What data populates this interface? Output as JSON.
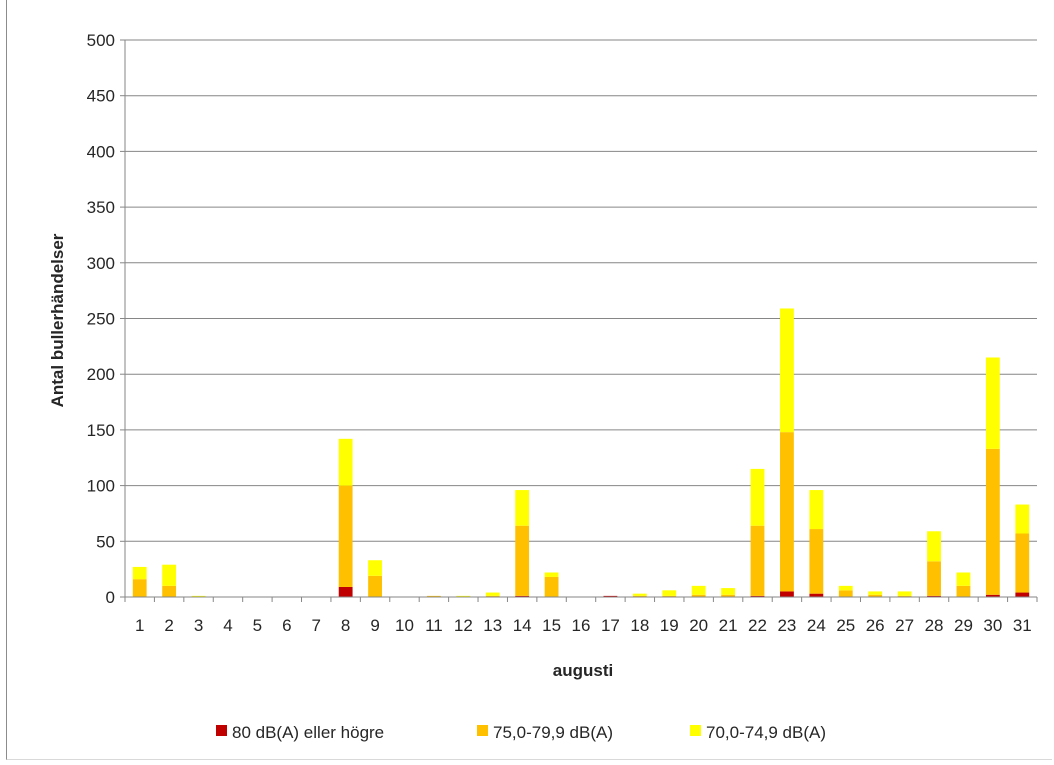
{
  "chart_data": {
    "type": "bar",
    "stacked": true,
    "title": "",
    "xlabel": "augusti",
    "ylabel": "Antal bullerhändelser",
    "ylim": [
      0,
      500
    ],
    "yticks": [
      0,
      50,
      100,
      150,
      200,
      250,
      300,
      350,
      400,
      450,
      500
    ],
    "grid": true,
    "legend_position": "bottom",
    "categories": [
      "1",
      "2",
      "3",
      "4",
      "5",
      "6",
      "7",
      "8",
      "9",
      "10",
      "11",
      "12",
      "13",
      "14",
      "15",
      "16",
      "17",
      "18",
      "19",
      "20",
      "21",
      "22",
      "23",
      "24",
      "25",
      "26",
      "27",
      "28",
      "29",
      "30",
      "31"
    ],
    "series": [
      {
        "name": "80 dB(A) eller högre",
        "color": "#c00000",
        "values": [
          0,
          0,
          0,
          0,
          0,
          0,
          0,
          9,
          0,
          0,
          0,
          0,
          0,
          1,
          0,
          0,
          1,
          0,
          0,
          0,
          0,
          1,
          5,
          3,
          0,
          0,
          0,
          1,
          0,
          2,
          4
        ]
      },
      {
        "name": "75,0-79,9 dB(A)",
        "color": "#ffc000",
        "values": [
          16,
          10,
          0,
          0,
          0,
          0,
          0,
          91,
          19,
          0,
          1,
          0,
          1,
          63,
          18,
          0,
          0,
          1,
          1,
          2,
          2,
          63,
          143,
          58,
          6,
          2,
          1,
          31,
          10,
          131,
          53
        ]
      },
      {
        "name": "70,0-74,9 dB(A)",
        "color": "#ffff00",
        "values": [
          11,
          19,
          1,
          0,
          0,
          0,
          0,
          42,
          14,
          0,
          0,
          1,
          3,
          32,
          4,
          0,
          0,
          2,
          5,
          8,
          6,
          51,
          111,
          35,
          4,
          3,
          4,
          27,
          12,
          82,
          26
        ]
      }
    ]
  }
}
